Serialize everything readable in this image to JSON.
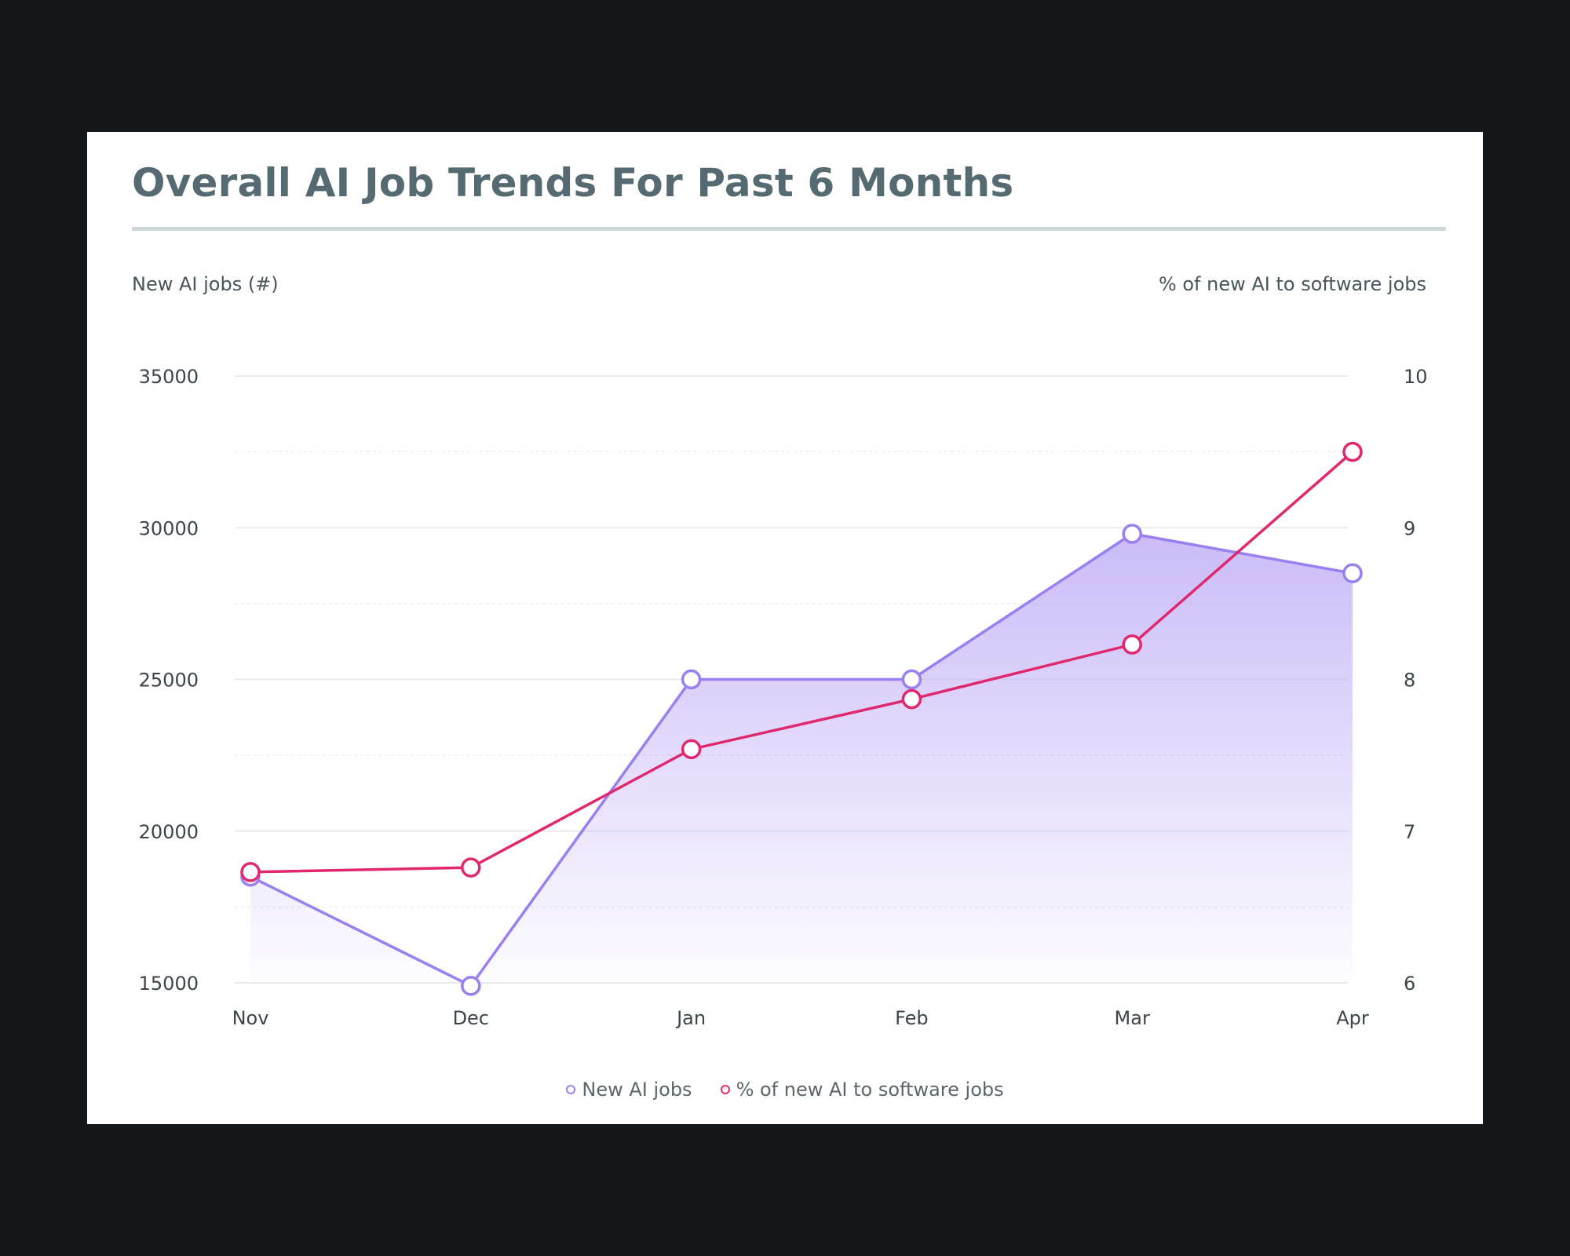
{
  "chart_data": {
    "type": "line",
    "title": "Overall AI Job Trends For Past 6 Months",
    "categories": [
      "Nov",
      "Dec",
      "Jan",
      "Feb",
      "Mar",
      "Apr"
    ],
    "y_left": {
      "label": "New AI jobs (#)",
      "ylim": [
        15000,
        35000
      ],
      "ticks": [
        35000,
        30000,
        25000,
        20000,
        15000
      ]
    },
    "y_right": {
      "label": "% of new AI to software jobs",
      "ylim": [
        6,
        10
      ],
      "ticks": [
        10,
        9,
        8,
        7,
        6
      ]
    },
    "series": [
      {
        "name": "New AI jobs",
        "axis": "left",
        "values": [
          18500,
          14900,
          25000,
          25000,
          29800,
          28500
        ],
        "color": "#9a7ff0",
        "area_fill": true
      },
      {
        "name": "% of new AI to software jobs",
        "axis": "right",
        "values": [
          6.73,
          6.76,
          7.54,
          7.87,
          8.23,
          9.5
        ],
        "color": "#e0286f"
      }
    ],
    "grid": true,
    "legend_position": "bottom-center"
  }
}
